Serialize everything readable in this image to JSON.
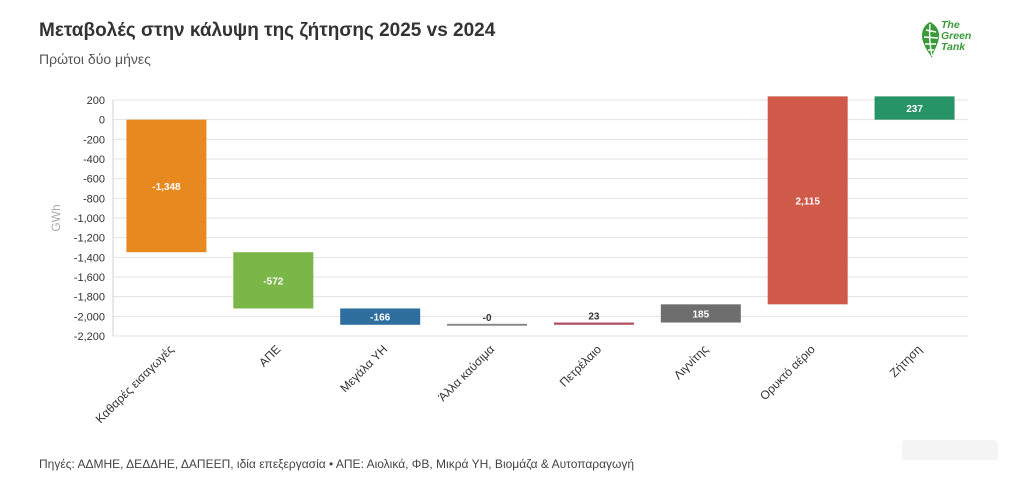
{
  "title": "Μεταβολές στην κάλυψη της ζήτησης 2025 vs 2024",
  "subtitle": "Πρώτοι δύο μήνες",
  "logo": {
    "lines": [
      "The",
      "Green",
      "Tank"
    ],
    "color": "#3a9a3a",
    "icon": "leaf-globe-icon"
  },
  "source": "Πηγές: ΑΔΜΗΕ, ΔΕΔΔΗΕ, ΔΑΠΕΕΠ, ιδία επεξεργασία • ΑΠΕ: Αιολικά, ΦΒ, Μικρά ΥΗ, Βιομάζα & Αυτοπαραγωγή",
  "chart_data": {
    "type": "bar",
    "subtype": "waterfall",
    "ylabel": "GWh",
    "ylim": [
      -2200,
      200
    ],
    "yticks": [
      200,
      0,
      -200,
      -400,
      -600,
      -800,
      -1000,
      -1200,
      -1400,
      -1600,
      -1800,
      -2000,
      -2200
    ],
    "ytick_labels": [
      "200",
      "0",
      "-200",
      "-400",
      "-600",
      "-800",
      "-1,000",
      "-1,200",
      "-1,400",
      "-1,600",
      "-1,800",
      "-2,000",
      "-2,200"
    ],
    "grid": true,
    "categories": [
      "Καθαρές εισαγωγές",
      "ΑΠΕ",
      "Μεγάλα ΥΗ",
      "Άλλα καύσιμα",
      "Πετρέλαιο",
      "Λιγνίτης",
      "Ορυκτό αέριο",
      "Ζήτηση"
    ],
    "values": [
      -1348,
      -572,
      -166,
      -0.1,
      23,
      185,
      2115,
      237
    ],
    "value_labels": [
      "-1,348",
      "-572",
      "-166",
      "-0",
      "23",
      "185",
      "2,115",
      "237"
    ],
    "bar_ranges": [
      [
        0,
        -1348
      ],
      [
        -1348,
        -1920
      ],
      [
        -1920,
        -2086
      ],
      [
        -2086,
        -2086
      ],
      [
        -2086,
        -2063
      ],
      [
        -2063,
        -1878
      ],
      [
        -1878,
        237
      ],
      [
        0,
        237
      ]
    ],
    "colors": [
      "#e8891f",
      "#7ab648",
      "#2f6f9f",
      "#8a8a8a",
      "#b05060",
      "#6e6e6e",
      "#d05a4a",
      "#279467"
    ]
  }
}
